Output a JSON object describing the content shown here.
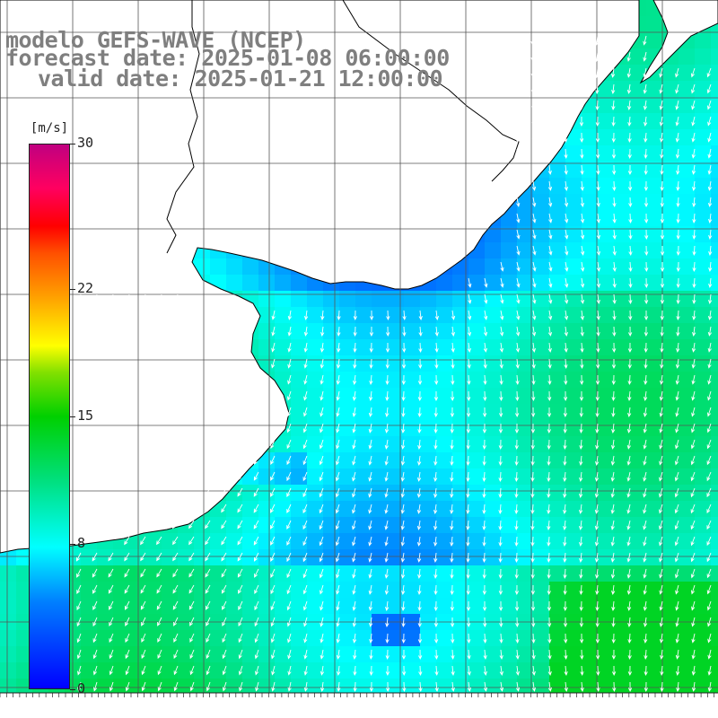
{
  "title": {
    "model": "modelo GEFS-WAVE (NCEP)",
    "forecast": "forecast date: 2025-01-08 06:00:00",
    "valid": "valid date: 2025-01-21 12:00:00"
  },
  "colorbar": {
    "units": "[m/s]",
    "ticks": [
      "30",
      "22",
      "15",
      "8",
      "0"
    ],
    "tick_values": [
      30,
      22,
      15,
      8,
      0
    ],
    "min": 0,
    "max": 30,
    "colors": [
      "#0000ff",
      "#0080ff",
      "#00ffff",
      "#00e080",
      "#00d000",
      "#80e000",
      "#ffff00",
      "#ffa000",
      "#ff5000",
      "#ff0000",
      "#ff0060",
      "#c00080"
    ]
  },
  "map": {
    "field": "wind speed with direction arrows",
    "land_color": "#ffffff",
    "coastline_color": "#000000",
    "grid_color": "#555555",
    "arrow_color": "#ffffff"
  }
}
